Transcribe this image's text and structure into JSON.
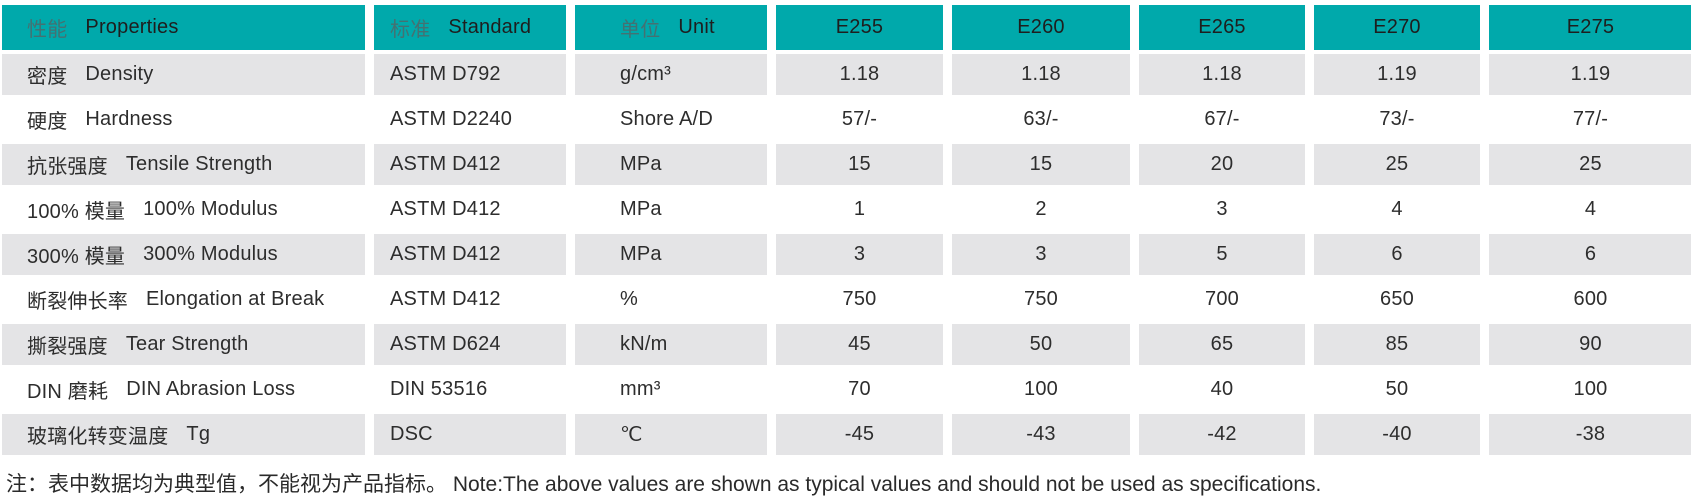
{
  "colors": {
    "header_bg": "#00a9ab",
    "row_alt_bg": "#e4e4e6",
    "row_bg": "#ffffff",
    "text": "#2d2d2d"
  },
  "table": {
    "columns": [
      {
        "zh": "性能",
        "en": "Properties"
      },
      {
        "zh": "标准",
        "en": "Standard"
      },
      {
        "zh": "单位",
        "en": "Unit"
      },
      {
        "label": "E255"
      },
      {
        "label": "E260"
      },
      {
        "label": "E265"
      },
      {
        "label": "E270"
      },
      {
        "label": "E275"
      }
    ],
    "rows": [
      {
        "property_zh": "密度",
        "property_en": "Density",
        "standard": "ASTM D792",
        "unit": "g/cm³",
        "values": [
          "1.18",
          "1.18",
          "1.18",
          "1.19",
          "1.19"
        ]
      },
      {
        "property_zh": "硬度",
        "property_en": "Hardness",
        "standard": "ASTM D2240",
        "unit": "Shore A/D",
        "values": [
          "57/-",
          "63/-",
          "67/-",
          "73/-",
          "77/-"
        ]
      },
      {
        "property_zh": "抗张强度",
        "property_en": "Tensile Strength",
        "standard": "ASTM D412",
        "unit": "MPa",
        "values": [
          "15",
          "15",
          "20",
          "25",
          "25"
        ]
      },
      {
        "property_zh": "100% 模量",
        "property_en": "100% Modulus",
        "standard": "ASTM D412",
        "unit": "MPa",
        "values": [
          "1",
          "2",
          "3",
          "4",
          "4"
        ]
      },
      {
        "property_zh": "300% 模量",
        "property_en": "300% Modulus",
        "standard": "ASTM D412",
        "unit": "MPa",
        "values": [
          "3",
          "3",
          "5",
          "6",
          "6"
        ]
      },
      {
        "property_zh": "断裂伸长率",
        "property_en": "Elongation at Break",
        "standard": "ASTM D412",
        "unit": "%",
        "values": [
          "750",
          "750",
          "700",
          "650",
          "600"
        ]
      },
      {
        "property_zh": "撕裂强度",
        "property_en": "Tear Strength",
        "standard": "ASTM D624",
        "unit": "kN/m",
        "values": [
          "45",
          "50",
          "65",
          "85",
          "90"
        ]
      },
      {
        "property_zh": "DIN 磨耗",
        "property_en": "DIN Abrasion Loss",
        "standard": "DIN 53516",
        "unit": "mm³",
        "values": [
          "70",
          "100",
          "40",
          "50",
          "100"
        ]
      },
      {
        "property_zh": "玻璃化转变温度",
        "property_en": "Tg",
        "standard": "DSC",
        "unit": "℃",
        "values": [
          "-45",
          "-43",
          "-42",
          "-40",
          "-38"
        ]
      }
    ]
  },
  "note": "注：表中数据均为典型值，不能视为产品指标。 Note:The above values are shown as typical values and should not be used as specifications."
}
